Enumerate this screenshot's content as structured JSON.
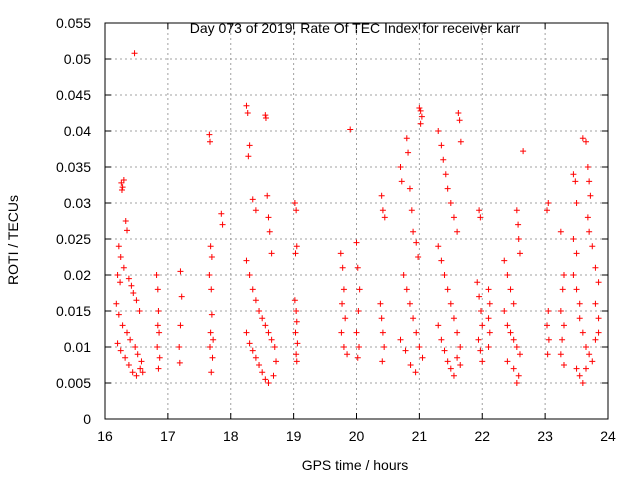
{
  "chart_data": {
    "type": "scatter",
    "title": "Day 073 of 2019, Rate Of TEC Index for receiver karr",
    "xlabel": "GPS time / hours",
    "ylabel": "ROTI / TECUs",
    "xlim": [
      16,
      24
    ],
    "ylim": [
      0,
      0.055
    ],
    "xticks": [
      "16",
      "17",
      "18",
      "19",
      "20",
      "21",
      "22",
      "23",
      "24"
    ],
    "yticks": [
      "0",
      "0.005",
      "0.01",
      "0.015",
      "0.02",
      "0.025",
      "0.03",
      "0.035",
      "0.04",
      "0.045",
      "0.05",
      "0.055"
    ],
    "grid": true,
    "marker": "plus",
    "color": "#ff0000",
    "points": [
      [
        16.47,
        0.0508
      ],
      [
        16.26,
        0.0328
      ],
      [
        16.28,
        0.0322
      ],
      [
        16.3,
        0.0332
      ],
      [
        16.27,
        0.0318
      ],
      [
        16.33,
        0.0275
      ],
      [
        16.35,
        0.0262
      ],
      [
        16.22,
        0.024
      ],
      [
        16.25,
        0.0225
      ],
      [
        16.2,
        0.02
      ],
      [
        16.24,
        0.019
      ],
      [
        16.3,
        0.021
      ],
      [
        16.38,
        0.0195
      ],
      [
        16.42,
        0.0185
      ],
      [
        16.45,
        0.0175
      ],
      [
        16.5,
        0.0165
      ],
      [
        16.55,
        0.015
      ],
      [
        16.18,
        0.016
      ],
      [
        16.22,
        0.0145
      ],
      [
        16.28,
        0.013
      ],
      [
        16.35,
        0.012
      ],
      [
        16.4,
        0.011
      ],
      [
        16.48,
        0.01
      ],
      [
        16.52,
        0.009
      ],
      [
        16.58,
        0.008
      ],
      [
        16.2,
        0.0105
      ],
      [
        16.25,
        0.0095
      ],
      [
        16.32,
        0.0085
      ],
      [
        16.38,
        0.0075
      ],
      [
        16.44,
        0.0065
      ],
      [
        16.5,
        0.006
      ],
      [
        16.56,
        0.007
      ],
      [
        16.6,
        0.0065
      ],
      [
        16.82,
        0.02
      ],
      [
        16.84,
        0.018
      ],
      [
        16.85,
        0.015
      ],
      [
        16.86,
        0.012
      ],
      [
        16.83,
        0.01
      ],
      [
        16.87,
        0.0085
      ],
      [
        16.85,
        0.007
      ],
      [
        16.84,
        0.013
      ],
      [
        17.2,
        0.0205
      ],
      [
        17.22,
        0.017
      ],
      [
        17.2,
        0.013
      ],
      [
        17.18,
        0.01
      ],
      [
        17.19,
        0.0078
      ],
      [
        17.66,
        0.0395
      ],
      [
        17.67,
        0.0385
      ],
      [
        17.68,
        0.024
      ],
      [
        17.7,
        0.0225
      ],
      [
        17.66,
        0.02
      ],
      [
        17.69,
        0.018
      ],
      [
        17.7,
        0.0145
      ],
      [
        17.68,
        0.012
      ],
      [
        17.67,
        0.01
      ],
      [
        17.71,
        0.0085
      ],
      [
        17.69,
        0.0065
      ],
      [
        17.72,
        0.011
      ],
      [
        17.85,
        0.0285
      ],
      [
        17.87,
        0.027
      ],
      [
        18.25,
        0.0435
      ],
      [
        18.27,
        0.0425
      ],
      [
        18.3,
        0.038
      ],
      [
        18.28,
        0.0365
      ],
      [
        18.35,
        0.0305
      ],
      [
        18.4,
        0.029
      ],
      [
        18.55,
        0.0422
      ],
      [
        18.56,
        0.0418
      ],
      [
        18.58,
        0.031
      ],
      [
        18.6,
        0.028
      ],
      [
        18.62,
        0.026
      ],
      [
        18.65,
        0.023
      ],
      [
        18.25,
        0.022
      ],
      [
        18.3,
        0.02
      ],
      [
        18.35,
        0.018
      ],
      [
        18.4,
        0.0165
      ],
      [
        18.45,
        0.015
      ],
      [
        18.5,
        0.014
      ],
      [
        18.55,
        0.013
      ],
      [
        18.6,
        0.012
      ],
      [
        18.65,
        0.011
      ],
      [
        18.7,
        0.01
      ],
      [
        18.25,
        0.012
      ],
      [
        18.3,
        0.0105
      ],
      [
        18.35,
        0.0095
      ],
      [
        18.4,
        0.0085
      ],
      [
        18.45,
        0.0075
      ],
      [
        18.5,
        0.0065
      ],
      [
        18.55,
        0.0055
      ],
      [
        18.6,
        0.005
      ],
      [
        18.68,
        0.006
      ],
      [
        18.72,
        0.008
      ],
      [
        19.02,
        0.03
      ],
      [
        19.04,
        0.029
      ],
      [
        19.05,
        0.024
      ],
      [
        19.03,
        0.023
      ],
      [
        19.02,
        0.0165
      ],
      [
        19.04,
        0.015
      ],
      [
        19.05,
        0.0135
      ],
      [
        19.03,
        0.012
      ],
      [
        19.06,
        0.0105
      ],
      [
        19.04,
        0.009
      ],
      [
        19.05,
        0.008
      ],
      [
        19.9,
        0.0402
      ],
      [
        19.75,
        0.023
      ],
      [
        19.78,
        0.021
      ],
      [
        19.8,
        0.018
      ],
      [
        19.77,
        0.016
      ],
      [
        19.82,
        0.014
      ],
      [
        19.76,
        0.012
      ],
      [
        19.8,
        0.01
      ],
      [
        19.85,
        0.009
      ],
      [
        20.0,
        0.0245
      ],
      [
        20.02,
        0.021
      ],
      [
        20.05,
        0.018
      ],
      [
        20.03,
        0.015
      ],
      [
        20.0,
        0.012
      ],
      [
        20.04,
        0.01
      ],
      [
        20.02,
        0.0085
      ],
      [
        20.4,
        0.031
      ],
      [
        20.42,
        0.029
      ],
      [
        20.45,
        0.028
      ],
      [
        20.38,
        0.016
      ],
      [
        20.4,
        0.014
      ],
      [
        20.42,
        0.012
      ],
      [
        20.44,
        0.01
      ],
      [
        20.41,
        0.008
      ],
      [
        20.7,
        0.035
      ],
      [
        20.72,
        0.033
      ],
      [
        20.8,
        0.039
      ],
      [
        20.82,
        0.037
      ],
      [
        20.85,
        0.032
      ],
      [
        20.88,
        0.029
      ],
      [
        20.9,
        0.026
      ],
      [
        20.95,
        0.0245
      ],
      [
        20.98,
        0.0225
      ],
      [
        21.0,
        0.0432
      ],
      [
        21.02,
        0.0428
      ],
      [
        21.04,
        0.042
      ],
      [
        21.02,
        0.041
      ],
      [
        20.75,
        0.02
      ],
      [
        20.8,
        0.018
      ],
      [
        20.85,
        0.016
      ],
      [
        20.9,
        0.014
      ],
      [
        20.95,
        0.012
      ],
      [
        21.0,
        0.01
      ],
      [
        21.05,
        0.0085
      ],
      [
        20.7,
        0.011
      ],
      [
        20.78,
        0.0095
      ],
      [
        20.86,
        0.0075
      ],
      [
        20.94,
        0.0065
      ],
      [
        21.3,
        0.04
      ],
      [
        21.35,
        0.038
      ],
      [
        21.38,
        0.036
      ],
      [
        21.42,
        0.034
      ],
      [
        21.45,
        0.032
      ],
      [
        21.5,
        0.03
      ],
      [
        21.55,
        0.028
      ],
      [
        21.6,
        0.026
      ],
      [
        21.62,
        0.0425
      ],
      [
        21.64,
        0.0415
      ],
      [
        21.66,
        0.0385
      ],
      [
        21.3,
        0.024
      ],
      [
        21.35,
        0.022
      ],
      [
        21.4,
        0.02
      ],
      [
        21.45,
        0.018
      ],
      [
        21.5,
        0.016
      ],
      [
        21.55,
        0.014
      ],
      [
        21.6,
        0.012
      ],
      [
        21.65,
        0.01
      ],
      [
        21.3,
        0.013
      ],
      [
        21.35,
        0.011
      ],
      [
        21.4,
        0.0095
      ],
      [
        21.45,
        0.008
      ],
      [
        21.5,
        0.007
      ],
      [
        21.55,
        0.006
      ],
      [
        21.6,
        0.0085
      ],
      [
        21.65,
        0.0075
      ],
      [
        21.95,
        0.029
      ],
      [
        21.97,
        0.028
      ],
      [
        21.92,
        0.019
      ],
      [
        21.95,
        0.017
      ],
      [
        21.98,
        0.015
      ],
      [
        22.0,
        0.013
      ],
      [
        21.94,
        0.011
      ],
      [
        21.97,
        0.0095
      ],
      [
        22.0,
        0.008
      ],
      [
        22.1,
        0.018
      ],
      [
        22.12,
        0.016
      ],
      [
        22.1,
        0.014
      ],
      [
        22.12,
        0.012
      ],
      [
        22.1,
        0.01
      ],
      [
        22.35,
        0.022
      ],
      [
        22.4,
        0.02
      ],
      [
        22.45,
        0.018
      ],
      [
        22.5,
        0.016
      ],
      [
        22.55,
        0.029
      ],
      [
        22.57,
        0.027
      ],
      [
        22.58,
        0.025
      ],
      [
        22.6,
        0.023
      ],
      [
        22.35,
        0.015
      ],
      [
        22.4,
        0.013
      ],
      [
        22.45,
        0.012
      ],
      [
        22.5,
        0.011
      ],
      [
        22.55,
        0.01
      ],
      [
        22.6,
        0.009
      ],
      [
        22.4,
        0.008
      ],
      [
        22.5,
        0.007
      ],
      [
        22.58,
        0.006
      ],
      [
        22.55,
        0.005
      ],
      [
        22.65,
        0.0372
      ],
      [
        23.05,
        0.03
      ],
      [
        23.03,
        0.029
      ],
      [
        23.05,
        0.015
      ],
      [
        23.03,
        0.013
      ],
      [
        23.06,
        0.011
      ],
      [
        23.04,
        0.009
      ],
      [
        23.25,
        0.026
      ],
      [
        23.3,
        0.02
      ],
      [
        23.28,
        0.018
      ],
      [
        23.25,
        0.015
      ],
      [
        23.3,
        0.013
      ],
      [
        23.27,
        0.011
      ],
      [
        23.25,
        0.009
      ],
      [
        23.3,
        0.0075
      ],
      [
        23.45,
        0.034
      ],
      [
        23.48,
        0.033
      ],
      [
        23.5,
        0.03
      ],
      [
        23.45,
        0.025
      ],
      [
        23.5,
        0.023
      ],
      [
        23.45,
        0.02
      ],
      [
        23.5,
        0.018
      ],
      [
        23.55,
        0.016
      ],
      [
        23.6,
        0.039
      ],
      [
        23.65,
        0.0385
      ],
      [
        23.68,
        0.035
      ],
      [
        23.7,
        0.033
      ],
      [
        23.72,
        0.031
      ],
      [
        23.68,
        0.028
      ],
      [
        23.7,
        0.026
      ],
      [
        23.75,
        0.024
      ],
      [
        23.8,
        0.021
      ],
      [
        23.85,
        0.019
      ],
      [
        23.55,
        0.014
      ],
      [
        23.6,
        0.012
      ],
      [
        23.65,
        0.01
      ],
      [
        23.7,
        0.009
      ],
      [
        23.75,
        0.008
      ],
      [
        23.8,
        0.011
      ],
      [
        23.85,
        0.014
      ],
      [
        23.5,
        0.007
      ],
      [
        23.55,
        0.006
      ],
      [
        23.6,
        0.005
      ],
      [
        23.65,
        0.007
      ],
      [
        23.8,
        0.016
      ],
      [
        23.85,
        0.012
      ]
    ]
  }
}
